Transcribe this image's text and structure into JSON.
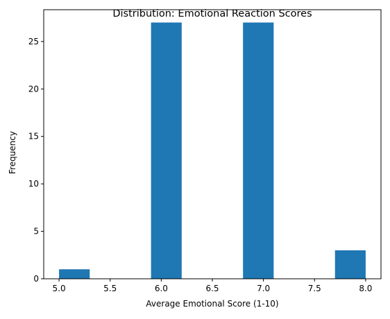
{
  "chart_data": {
    "type": "bar",
    "title": "Distribution: Emotional Reaction Scores",
    "xlabel": "Average Emotional Score (1-10)",
    "ylabel": "Frequency",
    "bins": [
      {
        "start": 5.0,
        "end": 5.3,
        "count": 1
      },
      {
        "start": 5.3,
        "end": 5.6,
        "count": 0
      },
      {
        "start": 5.6,
        "end": 5.9,
        "count": 0
      },
      {
        "start": 5.9,
        "end": 6.2,
        "count": 27
      },
      {
        "start": 6.2,
        "end": 6.5,
        "count": 0
      },
      {
        "start": 6.5,
        "end": 6.8,
        "count": 0
      },
      {
        "start": 6.8,
        "end": 7.1,
        "count": 27
      },
      {
        "start": 7.1,
        "end": 7.4,
        "count": 0
      },
      {
        "start": 7.4,
        "end": 7.7,
        "count": 0
      },
      {
        "start": 7.7,
        "end": 8.0,
        "count": 3
      }
    ],
    "xlim": [
      4.85,
      8.15
    ],
    "ylim": [
      0,
      28.35
    ],
    "xticks": [
      5.0,
      5.5,
      6.0,
      6.5,
      7.0,
      7.5,
      8.0
    ],
    "xtick_labels": [
      "5.0",
      "5.5",
      "6.0",
      "6.5",
      "7.0",
      "7.5",
      "8.0"
    ],
    "yticks": [
      0,
      5,
      10,
      15,
      20,
      25
    ],
    "ytick_labels": [
      "0",
      "5",
      "10",
      "15",
      "20",
      "25"
    ],
    "bar_color": "#1f77b4",
    "grid": false,
    "legend": "none"
  }
}
